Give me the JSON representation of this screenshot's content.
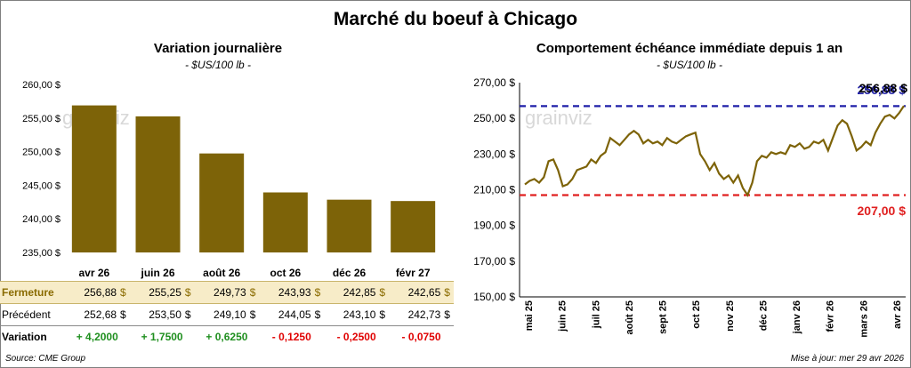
{
  "title": "Marché du boeuf à Chicago",
  "left": {
    "subtitle": "Variation journalière",
    "unit": "- $US/100 lb -",
    "rows": {
      "close_label": "Fermeture",
      "prev_label": "Précédent",
      "var_label": "Variation",
      "currency": "$",
      "close": [
        "256,88",
        "255,25",
        "249,73",
        "243,93",
        "242,85",
        "242,65"
      ],
      "prev": [
        "252,68",
        "253,50",
        "249,10",
        "244,05",
        "243,10",
        "242,73"
      ],
      "var": [
        "+ 4,2000",
        "+ 1,7500",
        "+ 0,6250",
        "- 0,1250",
        "- 0,2500",
        "- 0,0750"
      ]
    }
  },
  "right": {
    "subtitle": "Comportement échéance immédiate depuis 1 an",
    "unit": "- $US/100 lb -",
    "high_label": "256,88 $",
    "low_label": "207,00 $",
    "last_label": "256,88 $"
  },
  "watermark": "grainviz",
  "source": "Source: CME Group",
  "updated": "Mise à jour: mer 29 avr 2026",
  "colors": {
    "bar": "#7d6308",
    "line": "#7d6308",
    "high": "#1f1fa8",
    "low": "#e02020",
    "pos": "#1f8f1f",
    "neg": "#e00000"
  },
  "chart_data": [
    {
      "type": "bar",
      "categories": [
        "avr 26",
        "juin 26",
        "août 26",
        "oct 26",
        "déc 26",
        "févr 27"
      ],
      "values": [
        256.88,
        255.25,
        249.73,
        243.93,
        242.85,
        242.65
      ],
      "ylim": [
        235,
        260
      ],
      "yticks": [
        "235,00 $",
        "240,00 $",
        "245,00 $",
        "250,00 $",
        "255,00 $",
        "260,00 $"
      ],
      "grid": false
    },
    {
      "type": "line",
      "ylim": [
        150,
        270
      ],
      "yticks": [
        "150,00 $",
        "170,00 $",
        "190,00 $",
        "210,00 $",
        "230,00 $",
        "250,00 $",
        "270,00 $"
      ],
      "xticks": [
        "mai 25",
        "juin 25",
        "juil 25",
        "août 25",
        "sept 25",
        "oct 25",
        "nov 25",
        "déc 25",
        "janv 26",
        "févr 26",
        "mars 26",
        "avr 26"
      ],
      "reference_lines": [
        {
          "label": "high",
          "value": 256.88
        },
        {
          "label": "low",
          "value": 207.0
        }
      ],
      "series": [
        {
          "values": [
            213,
            215,
            216,
            214,
            217,
            226,
            227,
            221,
            212,
            213,
            216,
            221,
            222,
            223,
            227,
            225,
            229,
            231,
            239,
            237,
            235,
            238,
            241,
            243,
            241,
            236,
            238,
            236,
            237,
            235,
            239,
            237,
            236,
            238,
            240,
            241,
            242,
            230,
            226,
            221,
            225,
            219,
            216,
            218,
            214,
            218,
            211,
            207,
            214,
            226,
            229,
            228,
            231,
            230,
            231,
            230,
            235,
            234,
            236,
            233,
            234,
            237,
            236,
            238,
            232,
            239,
            246,
            249,
            247,
            240,
            232,
            234,
            237,
            235,
            242,
            247,
            251,
            252,
            250,
            253,
            257
          ]
        }
      ]
    }
  ]
}
